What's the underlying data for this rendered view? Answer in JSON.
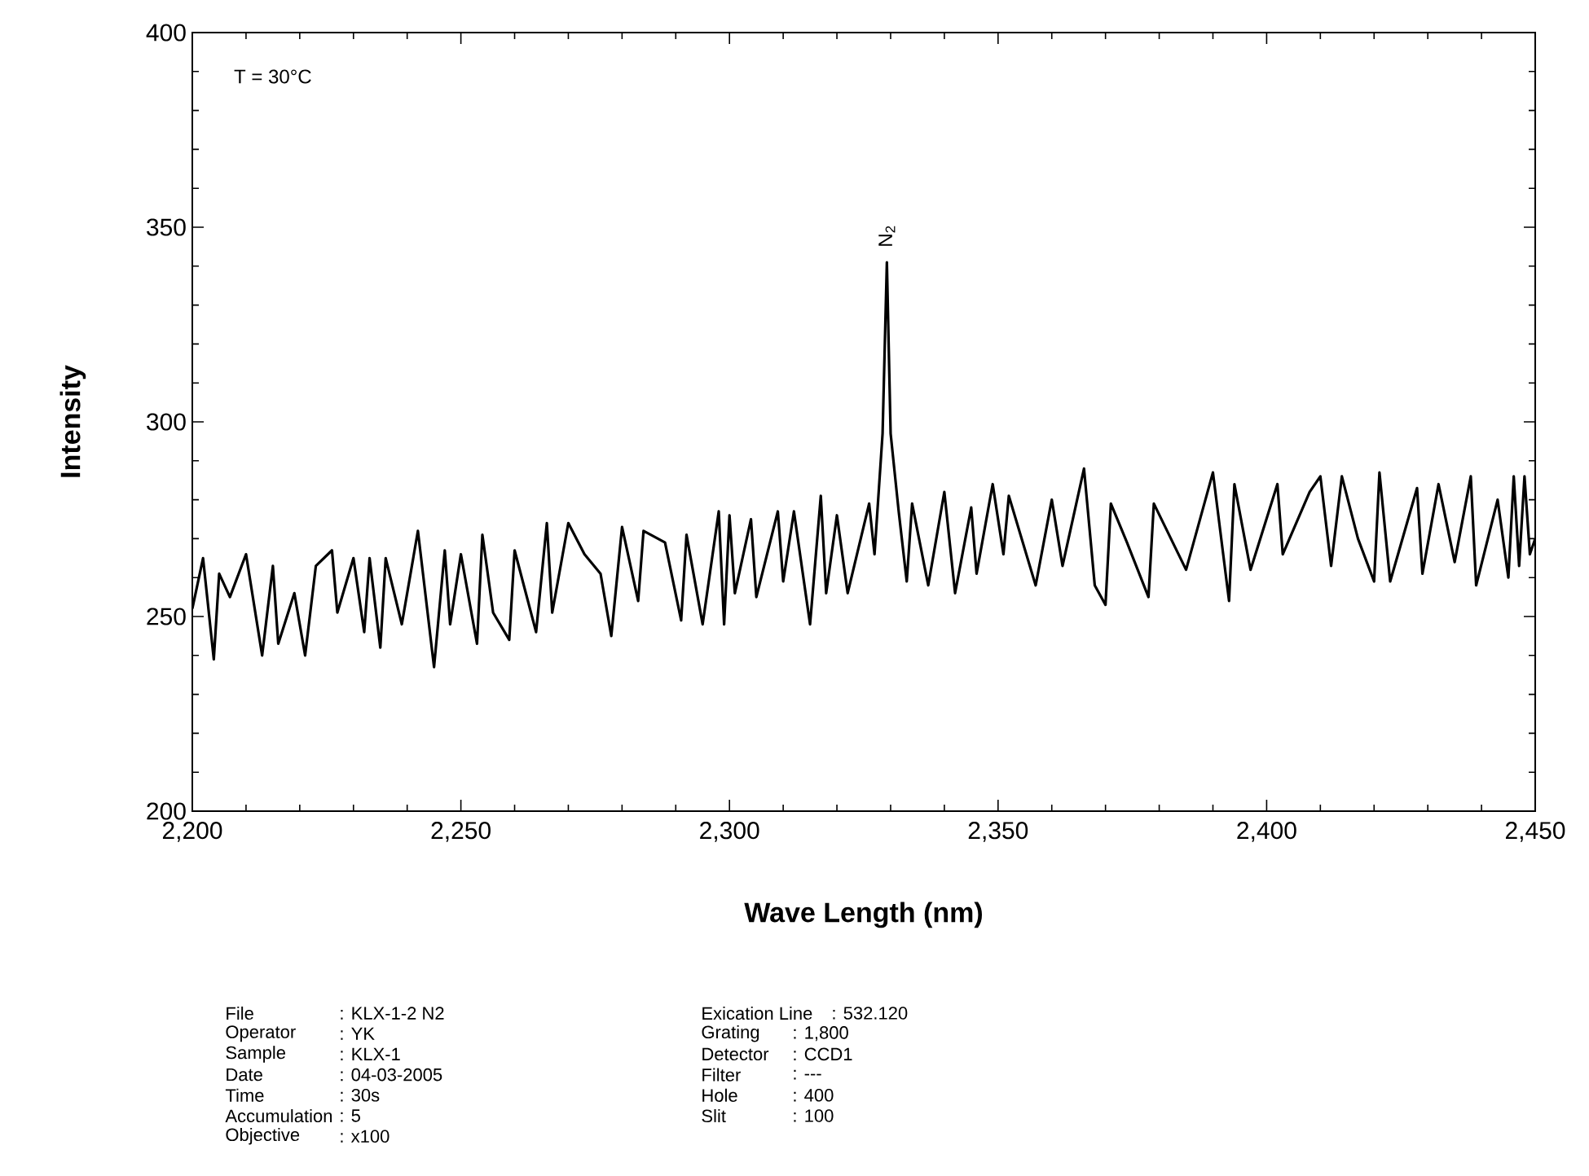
{
  "chart_data": {
    "type": "line",
    "xlabel": "Wave Length (nm)",
    "ylabel": "Intensity",
    "xlim": [
      2200,
      2450
    ],
    "ylim": [
      200,
      400
    ],
    "xticks": [
      {
        "value": 2200,
        "label": "2,200"
      },
      {
        "value": 2250,
        "label": "2,250"
      },
      {
        "value": 2300,
        "label": "2,300"
      },
      {
        "value": 2350,
        "label": "2,350"
      },
      {
        "value": 2400,
        "label": "2,400"
      },
      {
        "value": 2450,
        "label": "2,450"
      }
    ],
    "yticks": [
      200,
      250,
      300,
      350,
      400
    ],
    "x": [
      2200,
      2202,
      2204,
      2205,
      2207,
      2210,
      2213,
      2215,
      2216,
      2219,
      2221,
      2223,
      2226,
      2227,
      2230,
      2232,
      2233,
      2235,
      2236,
      2239,
      2242,
      2245,
      2247,
      2248,
      2250,
      2253,
      2254,
      2256,
      2259,
      2260,
      2264,
      2266,
      2267,
      2270,
      2273,
      2276,
      2278,
      2280,
      2283,
      2284,
      2288,
      2291,
      2292,
      2295,
      2298,
      2299,
      2300,
      2301,
      2304,
      2305,
      2309,
      2310,
      2312,
      2315,
      2317,
      2318,
      2320,
      2322,
      2326,
      2327,
      2328.5,
      2329.3,
      2330,
      2331.5,
      2333,
      2334,
      2337,
      2340,
      2342,
      2345,
      2346,
      2349,
      2351,
      2352,
      2357,
      2360,
      2362,
      2366,
      2368,
      2370,
      2371,
      2374,
      2378,
      2379,
      2385,
      2390,
      2393,
      2394,
      2397,
      2402,
      2403,
      2408,
      2410,
      2412,
      2414,
      2417,
      2420,
      2421,
      2423,
      2428,
      2429,
      2432,
      2435,
      2438,
      2439,
      2443,
      2445,
      2446,
      2447,
      2448,
      2449,
      2450
    ],
    "series": [
      {
        "color": "#000000",
        "values": [
          252,
          265,
          239,
          261,
          255,
          266,
          240,
          263,
          243,
          256,
          240,
          263,
          267,
          251,
          265,
          246,
          265,
          242,
          265,
          248,
          272,
          237,
          267,
          248,
          266,
          243,
          271,
          251,
          244,
          267,
          246,
          274,
          251,
          274,
          266,
          261,
          245,
          273,
          254,
          272,
          269,
          249,
          271,
          248,
          277,
          248,
          276,
          256,
          275,
          255,
          277,
          259,
          277,
          248,
          281,
          256,
          276,
          256,
          279,
          266,
          297,
          341,
          297,
          277,
          259,
          279,
          258,
          282,
          256,
          278,
          261,
          284,
          266,
          281,
          258,
          280,
          263,
          288,
          258,
          253,
          279,
          269,
          255,
          279,
          262,
          287,
          254,
          284,
          262,
          284,
          266,
          282,
          286,
          263,
          286,
          270,
          259,
          287,
          259,
          283,
          261,
          284,
          264,
          286,
          258,
          280,
          260,
          286,
          263,
          286,
          266,
          270
        ]
      }
    ],
    "annotations": [
      "T = 30°C",
      {
        "text": "N$_{2}$",
        "x": 2329.3,
        "y": 341
      },
      "File",
      ": KLX-1-2 N2",
      "Operator",
      ": YK",
      "Sample",
      ": KLX-1",
      "Date",
      ": 04-03-2005",
      "Time",
      ": 30s",
      "Accumulation",
      ": 5",
      "Objective",
      ": x100",
      "Exication Line",
      ": 532.120",
      "Grating",
      ": 1,800",
      "Detector",
      ": CCD1",
      "Filter",
      ": ---",
      "Hole",
      ": 400",
      "Slit",
      ": 100"
    ]
  }
}
